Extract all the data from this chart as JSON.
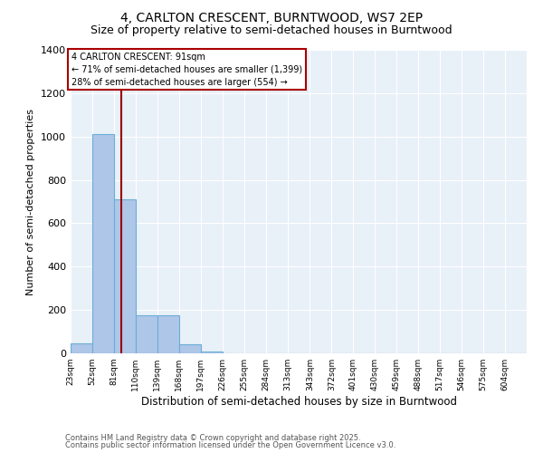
{
  "title1": "4, CARLTON CRESCENT, BURNTWOOD, WS7 2EP",
  "title2": "Size of property relative to semi-detached houses in Burntwood",
  "xlabel": "Distribution of semi-detached houses by size in Burntwood",
  "ylabel": "Number of semi-detached properties",
  "bins": [
    "23sqm",
    "52sqm",
    "81sqm",
    "110sqm",
    "139sqm",
    "168sqm",
    "197sqm",
    "226sqm",
    "255sqm",
    "284sqm",
    "313sqm",
    "343sqm",
    "372sqm",
    "401sqm",
    "430sqm",
    "459sqm",
    "488sqm",
    "517sqm",
    "546sqm",
    "575sqm",
    "604sqm"
  ],
  "bin_edges": [
    23,
    52,
    81,
    110,
    139,
    168,
    197,
    226,
    255,
    284,
    313,
    343,
    372,
    401,
    430,
    459,
    488,
    517,
    546,
    575,
    604
  ],
  "counts": [
    45,
    1010,
    710,
    175,
    175,
    40,
    10,
    0,
    0,
    0,
    0,
    0,
    0,
    0,
    0,
    0,
    0,
    0,
    0,
    0,
    0
  ],
  "bar_color": "#aec6e8",
  "bar_edge_color": "#6baed6",
  "property_size": 91,
  "vline_color": "#990000",
  "annotation_text": "4 CARLTON CRESCENT: 91sqm\n← 71% of semi-detached houses are smaller (1,399)\n28% of semi-detached houses are larger (554) →",
  "annotation_box_color": "#aa0000",
  "ylim": [
    0,
    1400
  ],
  "yticks": [
    0,
    200,
    400,
    600,
    800,
    1000,
    1200,
    1400
  ],
  "bg_color": "#e8f0f8",
  "footer1": "Contains HM Land Registry data © Crown copyright and database right 2025.",
  "footer2": "Contains public sector information licensed under the Open Government Licence v3.0.",
  "title1_fontsize": 10,
  "title2_fontsize": 9
}
